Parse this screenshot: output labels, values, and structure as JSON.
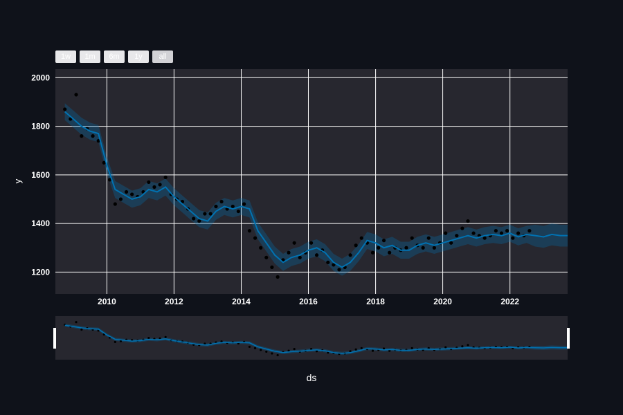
{
  "range_selector": {
    "buttons": [
      {
        "label": "1w",
        "active": false
      },
      {
        "label": "1m",
        "active": false
      },
      {
        "label": "6m",
        "active": false
      },
      {
        "label": "1y",
        "active": false
      },
      {
        "label": "all",
        "active": true
      }
    ]
  },
  "colors": {
    "background": "#0f121a",
    "plot_bg": "#27272f",
    "grid": "#ffffff",
    "observed": "#000000",
    "forecast": "#0072b2"
  },
  "chart_data": {
    "type": "line",
    "xlabel": "ds",
    "ylabel": "y",
    "x_type": "date",
    "xlim": [
      "2008-06-20",
      "2023-09-20"
    ],
    "ylim": [
      1110,
      2035
    ],
    "x_ticks": [
      "2010",
      "2012",
      "2014",
      "2016",
      "2018",
      "2020",
      "2022"
    ],
    "y_ticks": [
      1200,
      1400,
      1600,
      1800,
      2000
    ],
    "grid": true,
    "legend": "none",
    "forecast_start": "2022-09-01",
    "series": [
      {
        "role": "observed",
        "mode": "markers",
        "x": [
          "2008-10-01",
          "2008-12-01",
          "2009-02-01",
          "2009-04-01",
          "2009-06-01",
          "2009-08-01",
          "2009-10-01",
          "2009-12-01",
          "2010-02-01",
          "2010-04-01",
          "2010-06-01",
          "2010-08-01",
          "2010-10-01",
          "2010-12-01",
          "2011-02-01",
          "2011-04-01",
          "2011-06-01",
          "2011-08-01",
          "2011-10-01",
          "2011-12-01",
          "2012-02-01",
          "2012-04-01",
          "2012-06-01",
          "2012-08-01",
          "2012-10-01",
          "2012-12-01",
          "2013-02-01",
          "2013-04-01",
          "2013-06-01",
          "2013-08-01",
          "2013-10-01",
          "2013-12-01",
          "2014-02-01",
          "2014-04-01",
          "2014-06-01",
          "2014-08-01",
          "2014-10-01",
          "2014-12-01",
          "2015-02-01",
          "2015-04-01",
          "2015-06-01",
          "2015-08-01",
          "2015-10-01",
          "2015-12-01",
          "2016-02-01",
          "2016-04-01",
          "2016-06-01",
          "2016-08-01",
          "2016-10-01",
          "2016-12-01",
          "2017-02-01",
          "2017-04-01",
          "2017-06-01",
          "2017-08-01",
          "2017-10-01",
          "2017-12-01",
          "2018-02-01",
          "2018-04-01",
          "2018-06-01",
          "2018-08-01",
          "2018-10-01",
          "2018-12-01",
          "2019-02-01",
          "2019-04-01",
          "2019-06-01",
          "2019-08-01",
          "2019-10-01",
          "2019-12-01",
          "2020-02-01",
          "2020-04-01",
          "2020-06-01",
          "2020-08-01",
          "2020-10-01",
          "2020-12-01",
          "2021-02-01",
          "2021-04-01",
          "2021-06-01",
          "2021-08-01",
          "2021-10-01",
          "2021-12-01",
          "2022-02-01",
          "2022-04-01",
          "2022-06-01",
          "2022-08-01"
        ],
        "y": [
          1870,
          1830,
          1930,
          1760,
          1790,
          1760,
          1740,
          1650,
          1580,
          1480,
          1500,
          1530,
          1520,
          1510,
          1530,
          1570,
          1550,
          1560,
          1590,
          1520,
          1500,
          1490,
          1460,
          1420,
          1410,
          1440,
          1440,
          1470,
          1490,
          1460,
          1470,
          1450,
          1480,
          1370,
          1340,
          1300,
          1260,
          1220,
          1180,
          1250,
          1280,
          1320,
          1260,
          1280,
          1320,
          1270,
          1290,
          1240,
          1230,
          1210,
          1220,
          1270,
          1310,
          1340,
          1320,
          1280,
          1300,
          1330,
          1280,
          1300,
          1290,
          1300,
          1340,
          1310,
          1300,
          1340,
          1300,
          1320,
          1360,
          1320,
          1350,
          1380,
          1410,
          1360,
          1350,
          1340,
          1350,
          1370,
          1360,
          1370,
          1340,
          1360,
          1350,
          1370
        ]
      },
      {
        "role": "forecast",
        "mode": "line",
        "x": [
          "2008-10-01",
          "2009-01-01",
          "2009-04-01",
          "2009-07-01",
          "2009-10-01",
          "2010-01-01",
          "2010-04-01",
          "2010-07-01",
          "2010-10-01",
          "2011-01-01",
          "2011-04-01",
          "2011-07-01",
          "2011-10-01",
          "2012-01-01",
          "2012-04-01",
          "2012-07-01",
          "2012-10-01",
          "2013-01-01",
          "2013-04-01",
          "2013-07-01",
          "2013-10-01",
          "2014-01-01",
          "2014-04-01",
          "2014-07-01",
          "2014-10-01",
          "2015-01-01",
          "2015-04-01",
          "2015-07-01",
          "2015-10-01",
          "2016-01-01",
          "2016-04-01",
          "2016-07-01",
          "2016-10-01",
          "2017-01-01",
          "2017-04-01",
          "2017-07-01",
          "2017-10-01",
          "2018-01-01",
          "2018-04-01",
          "2018-07-01",
          "2018-10-01",
          "2019-01-01",
          "2019-04-01",
          "2019-07-01",
          "2019-10-01",
          "2020-01-01",
          "2020-04-01",
          "2020-07-01",
          "2020-10-01",
          "2021-01-01",
          "2021-04-01",
          "2021-07-01",
          "2021-10-01",
          "2022-01-01",
          "2022-04-01",
          "2022-07-01",
          "2022-10-01",
          "2023-01-01",
          "2023-04-01",
          "2023-07-01",
          "2023-09-20"
        ],
        "y": [
          1860,
          1830,
          1800,
          1780,
          1770,
          1640,
          1540,
          1520,
          1500,
          1510,
          1540,
          1530,
          1550,
          1510,
          1480,
          1450,
          1420,
          1410,
          1450,
          1470,
          1460,
          1470,
          1460,
          1370,
          1320,
          1270,
          1240,
          1260,
          1270,
          1290,
          1300,
          1280,
          1240,
          1220,
          1240,
          1280,
          1330,
          1320,
          1300,
          1310,
          1290,
          1290,
          1310,
          1320,
          1310,
          1320,
          1330,
          1340,
          1350,
          1340,
          1350,
          1355,
          1350,
          1360,
          1345,
          1355,
          1350,
          1345,
          1355,
          1350,
          1350
        ],
        "band_halfwidth": 35,
        "forecast_band_halfwidth": 45
      }
    ],
    "rangeslider": {
      "range": [
        "2008-06-20",
        "2023-09-20"
      ]
    }
  }
}
